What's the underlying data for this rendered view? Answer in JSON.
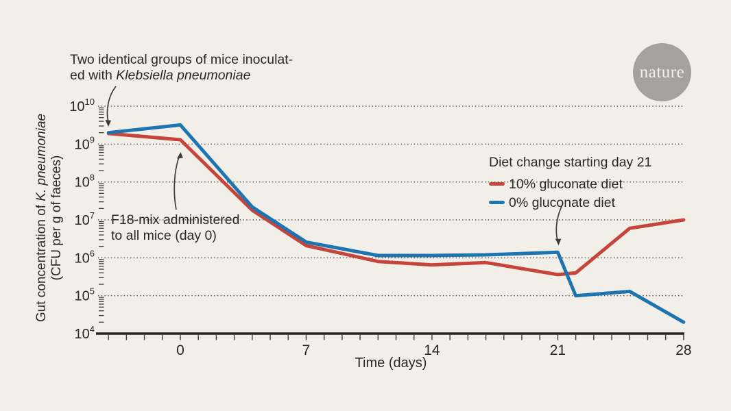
{
  "page": {
    "background_color": "#f2efe8",
    "text_color": "#2b2823"
  },
  "logo": {
    "text": "nature",
    "circle_color": "#a5a29b",
    "text_color": "#f4f1ea"
  },
  "annotations": {
    "inoculation": {
      "line1": "Two identical groups of mice inoculat-",
      "line2_prefix": "ed with ",
      "line2_italic": "Klebsiella pneumoniae"
    },
    "f18": {
      "line1": "F18-mix administered",
      "line2": "to all mice (day 0)"
    }
  },
  "legend": {
    "title": "Diet change starting day 21"
  },
  "chart_data": {
    "type": "line",
    "y_scale": "log10",
    "x_range": [
      -4,
      28
    ],
    "x_ticks": [
      0,
      7,
      14,
      21,
      28
    ],
    "x_minor_tick_step_days": 1,
    "y_decades": [
      4,
      5,
      6,
      7,
      8,
      9,
      10
    ],
    "ylim": [
      10000.0,
      10000000000.0
    ],
    "xlabel": "Time (days)",
    "ylabel_prefix": "Gut concentration of ",
    "ylabel_italic": "K. pneumoniae",
    "ylabel_line2": "(CFU per g of faeces)",
    "grid": "dotted horizontal line at each decade",
    "legend_position": "upper right inside plot",
    "series": [
      {
        "id": "gluconate-10",
        "name": "10% gluconate diet",
        "color": "#c5453d",
        "x": [
          -4,
          0,
          4,
          7,
          11,
          14,
          17,
          21,
          22,
          25,
          28
        ],
        "y": [
          1900000000.0,
          1300000000.0,
          18000000.0,
          2100000.0,
          800000.0,
          650000.0,
          750000.0,
          360000.0,
          400000.0,
          6000000.0,
          10000000.0
        ]
      },
      {
        "id": "gluconate-0",
        "name": "0% gluconate diet",
        "color": "#1e74af",
        "x": [
          -4,
          0,
          4,
          7,
          11,
          14,
          17,
          21,
          22,
          25,
          28
        ],
        "y": [
          2000000000.0,
          3200000000.0,
          22000000.0,
          2600000.0,
          1150000.0,
          1150000.0,
          1200000.0,
          1400000.0,
          100000.0,
          130000.0,
          20000.0
        ]
      }
    ],
    "colors": {
      "axis": "#262321",
      "gridline": "#57544e",
      "tick": "#3c3a37",
      "arrow": "#3e3b36"
    }
  }
}
